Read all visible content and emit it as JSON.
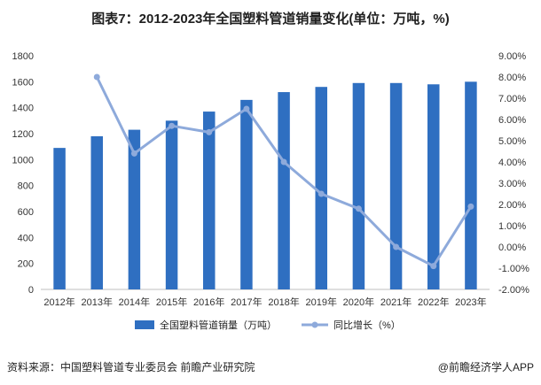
{
  "chart_data": {
    "type": "bar",
    "title": "图表7：2012-2023年全国塑料管道销量变化(单位：万吨，%)",
    "categories": [
      "2012年",
      "2013年",
      "2014年",
      "2015年",
      "2016年",
      "2017年",
      "2018年",
      "2019年",
      "2020年",
      "2021年",
      "2022年",
      "2023年"
    ],
    "series": [
      {
        "name": "全国塑料管道销量（万吨）",
        "kind": "bar",
        "axis": "left",
        "color": "#2f6fc1",
        "values": [
          1090,
          1180,
          1230,
          1300,
          1370,
          1460,
          1520,
          1560,
          1590,
          1590,
          1580,
          1600
        ]
      },
      {
        "name": "同比增长（%）",
        "kind": "line",
        "axis": "right",
        "color": "#8eaadb",
        "values": [
          null,
          8.0,
          4.4,
          5.7,
          5.4,
          6.5,
          4.0,
          2.5,
          1.8,
          0.0,
          -0.9,
          1.9
        ]
      }
    ],
    "ylim_left": [
      0,
      1800
    ],
    "yticks_left": [
      "0",
      "200",
      "400",
      "600",
      "800",
      "1000",
      "1200",
      "1400",
      "1600",
      "1800"
    ],
    "ylim_right": [
      -2,
      9
    ],
    "yticks_right": [
      "-2.00%",
      "-1.00%",
      "0.00%",
      "1.00%",
      "2.00%",
      "3.00%",
      "4.00%",
      "5.00%",
      "6.00%",
      "7.00%",
      "8.00%",
      "9.00%"
    ],
    "grid": false,
    "legend_position": "bottom"
  },
  "footer": {
    "source": "资料来源：中国塑料管道专业委员会 前瞻产业研究院",
    "credit": "@前瞻经济学人APP"
  }
}
